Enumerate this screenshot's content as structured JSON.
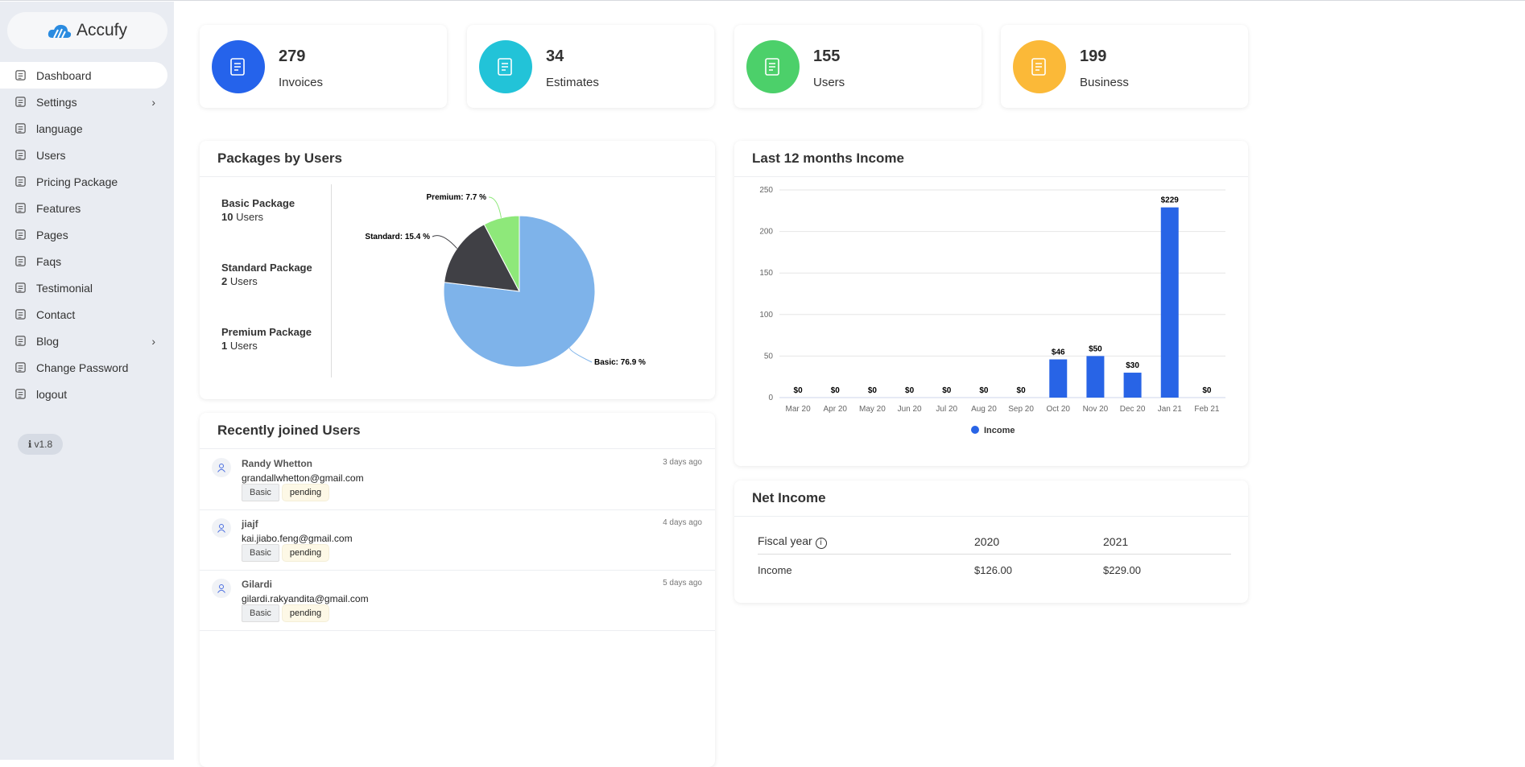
{
  "brand": {
    "name": "Accufy"
  },
  "sidebar": {
    "items": [
      {
        "label": "Dashboard",
        "icon": "home-icon",
        "active": true
      },
      {
        "label": "Settings",
        "icon": "gear-icon",
        "chevron": true
      },
      {
        "label": "language",
        "icon": "language-icon"
      },
      {
        "label": "Users",
        "icon": "users-icon"
      },
      {
        "label": "Pricing Package",
        "icon": "package-icon"
      },
      {
        "label": "Features",
        "icon": "features-icon"
      },
      {
        "label": "Pages",
        "icon": "pages-icon"
      },
      {
        "label": "Faqs",
        "icon": "question-icon"
      },
      {
        "label": "Testimonial",
        "icon": "testimonial-icon"
      },
      {
        "label": "Contact",
        "icon": "contact-icon"
      },
      {
        "label": "Blog",
        "icon": "blog-icon",
        "chevron": true
      },
      {
        "label": "Change Password",
        "icon": "lock-icon"
      },
      {
        "label": "logout",
        "icon": "logout-icon"
      }
    ],
    "version": "v1.8"
  },
  "stats": [
    {
      "value": "279",
      "label": "Invoices",
      "color": "#2563eb",
      "icon": "invoice-icon"
    },
    {
      "value": "34",
      "label": "Estimates",
      "color": "#22c3d8",
      "icon": "scroll-icon"
    },
    {
      "value": "155",
      "label": "Users",
      "color": "#4cd06a",
      "icon": "users-icon"
    },
    {
      "value": "199",
      "label": "Business",
      "color": "#fbb938",
      "icon": "briefcase-icon"
    }
  ],
  "packages": {
    "title": "Packages by Users",
    "items": [
      {
        "name": "Basic Package",
        "count": "10",
        "unit": "Users"
      },
      {
        "name": "Standard Package",
        "count": "2",
        "unit": "Users"
      },
      {
        "name": "Premium Package",
        "count": "1",
        "unit": "Users"
      }
    ]
  },
  "recent": {
    "title": "Recently joined Users",
    "users": [
      {
        "name": "Randy Whetton",
        "email": "grandallwhetton@gmail.com",
        "plan": "Basic",
        "status": "pending",
        "time": "3 days ago"
      },
      {
        "name": "jiajf",
        "email": "kai.jiabo.feng@gmail.com",
        "plan": "Basic",
        "status": "pending",
        "time": "4 days ago"
      },
      {
        "name": "Gilardi",
        "email": "gilardi.rakyandita@gmail.com",
        "plan": "Basic",
        "status": "pending",
        "time": "5 days ago"
      }
    ]
  },
  "income_card": {
    "title": "Last 12 months Income"
  },
  "net": {
    "title": "Net Income",
    "header": [
      "Fiscal year",
      "2020",
      "2021"
    ],
    "rows": [
      [
        "Income",
        "$126.00",
        "$229.00"
      ]
    ]
  },
  "chart_data": [
    {
      "type": "pie",
      "slices": [
        {
          "name": "Basic",
          "value": 76.9,
          "label": "Basic: 76.9 %",
          "color": "#7eb3ea"
        },
        {
          "name": "Standard",
          "value": 15.4,
          "label": "Standard: 15.4 %",
          "color": "#404045"
        },
        {
          "name": "Premium",
          "value": 7.7,
          "label": "Premium: 7.7 %",
          "color": "#8ee87a"
        }
      ]
    },
    {
      "type": "bar",
      "categories": [
        "Mar 20",
        "Apr 20",
        "May 20",
        "Jun 20",
        "Jul 20",
        "Aug 20",
        "Sep 20",
        "Oct 20",
        "Nov 20",
        "Dec 20",
        "Jan 21",
        "Feb 21"
      ],
      "series": [
        {
          "name": "Income",
          "values": [
            0,
            0,
            0,
            0,
            0,
            0,
            0,
            46,
            50,
            30,
            229,
            0
          ],
          "color": "#2864e6"
        }
      ],
      "data_labels": [
        "$0",
        "$0",
        "$0",
        "$0",
        "$0",
        "$0",
        "$0",
        "$46",
        "$50",
        "$30",
        "$229",
        "$0"
      ],
      "yticks": [
        0,
        50,
        100,
        150,
        200,
        250
      ],
      "ylim": [
        0,
        250
      ],
      "grid": true,
      "legend": "bottom"
    }
  ]
}
